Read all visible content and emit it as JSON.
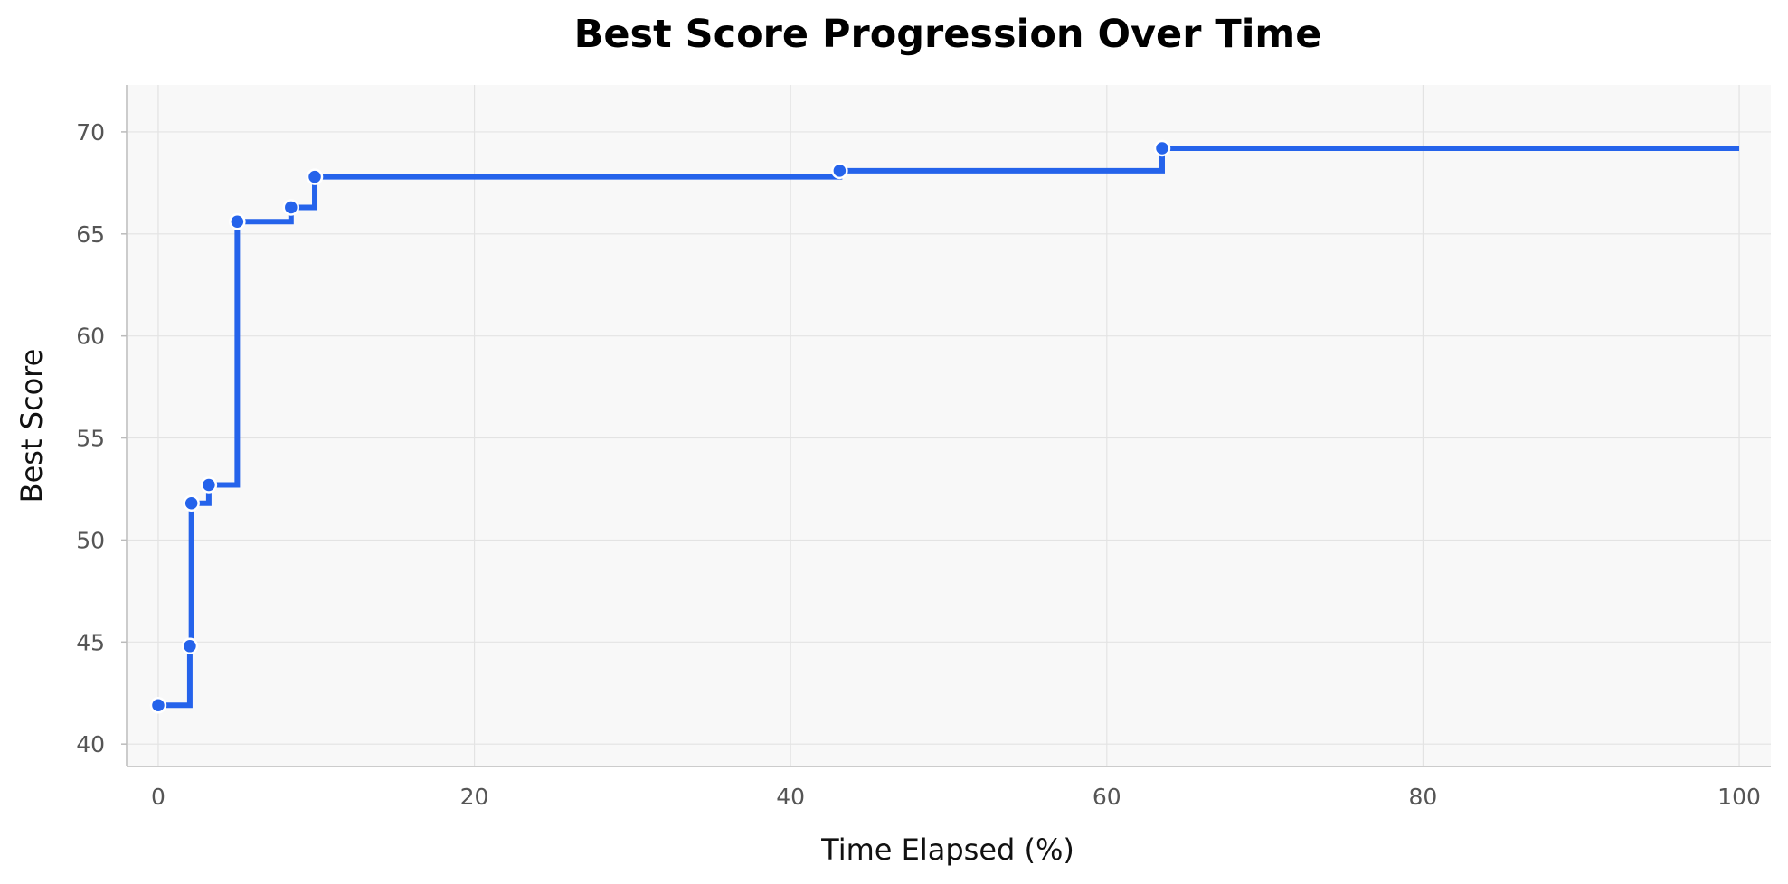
{
  "chart_data": {
    "type": "line",
    "step": "post",
    "title": "Best Score Progression Over Time",
    "xlabel": "Time Elapsed (%)",
    "ylabel": "Best Score",
    "xlim": [
      -2,
      102
    ],
    "ylim": [
      38.9,
      72.3
    ],
    "xticks": [
      0,
      20,
      40,
      60,
      80,
      100
    ],
    "yticks": [
      40,
      45,
      50,
      55,
      60,
      65,
      70
    ],
    "grid": true,
    "legend": "none",
    "series": [
      {
        "color": "#2563eb",
        "x": [
          0,
          2.0,
          2.1,
          3.2,
          5.0,
          8.4,
          9.9,
          43.1,
          63.5,
          100
        ],
        "y": [
          41.9,
          44.8,
          51.8,
          52.7,
          65.6,
          66.3,
          67.8,
          68.1,
          69.2,
          69.2
        ],
        "markers": [
          true,
          true,
          true,
          true,
          true,
          true,
          true,
          true,
          true,
          false
        ]
      }
    ]
  }
}
